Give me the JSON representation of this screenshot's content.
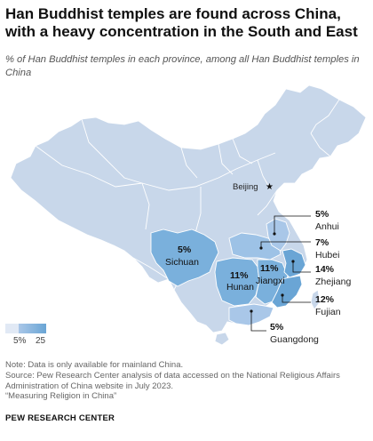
{
  "title": "Han Buddhist temples are found across China, with a heavy concentration in the South and East",
  "subtitle": "% of Han Buddhist temples in each province, among all Han Buddhist temples in China",
  "colors": {
    "base_province": "#c8d7ea",
    "low_highlight": "#a9c7e8",
    "high_highlight": "#6aa5d5",
    "border": "#ffffff",
    "leader_line": "#111111"
  },
  "map": {
    "city_label": "Beijing",
    "city_marker": "star-icon",
    "provinces": [
      {
        "name": "Anhui",
        "value_label": "5%",
        "value": 5
      },
      {
        "name": "Hubei",
        "value_label": "7%",
        "value": 7
      },
      {
        "name": "Zhejiang",
        "value_label": "14%",
        "value": 14
      },
      {
        "name": "Fujian",
        "value_label": "12%",
        "value": 12
      },
      {
        "name": "Guangdong",
        "value_label": "5%",
        "value": 5
      },
      {
        "name": "Sichuan",
        "value_label": "5%",
        "value": 5
      },
      {
        "name": "Hunan",
        "value_label": "11%",
        "value": 11
      },
      {
        "name": "Jiangxi",
        "value_label": "11%",
        "value": 11
      }
    ]
  },
  "legend": {
    "min_label": "5%",
    "max_label": "25"
  },
  "notes": {
    "note": "Note: Data is only available for mainland China.",
    "source": "Source: Pew Research Center analysis of data accessed on the National Religious Affairs Administration of China website in July 2023.",
    "report": "“Measuring Religion in China”"
  },
  "brand": "PEW RESEARCH CENTER"
}
